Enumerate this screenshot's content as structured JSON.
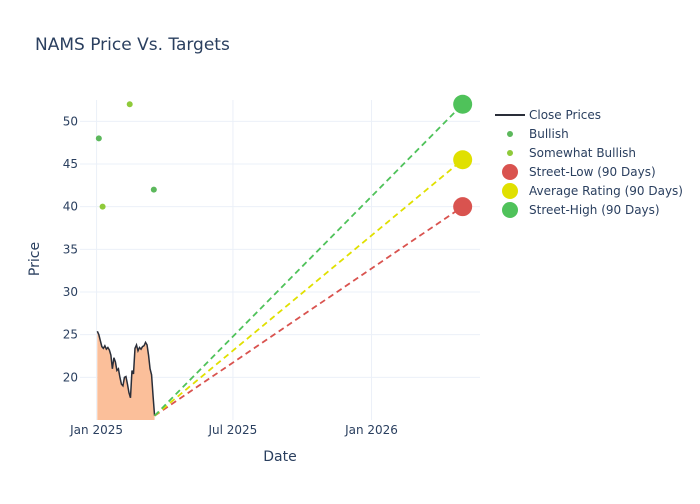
{
  "chart_data": {
    "type": "line",
    "title": "NAMS Price Vs. Targets",
    "xlabel": "Date",
    "ylabel": "Price",
    "x_range": [
      "2024-12-10",
      "2026-05-25"
    ],
    "y_range": [
      15,
      52.5
    ],
    "x_ticks": [
      {
        "date": "2025-01-01",
        "label": "Jan 2025"
      },
      {
        "date": "2025-07-01",
        "label": "Jul 2025"
      },
      {
        "date": "2026-01-01",
        "label": "Jan 2026"
      }
    ],
    "y_ticks": [
      20,
      25,
      30,
      35,
      40,
      45,
      50
    ],
    "grid": true,
    "legend_position": "right",
    "series": [
      {
        "name": "Close Prices",
        "kind": "line",
        "fill": "area",
        "color": "#2a2e39",
        "fill_color": "#fbbf9a",
        "points": [
          [
            "2025-01-02",
            25.4
          ],
          [
            "2025-01-04",
            25.0
          ],
          [
            "2025-01-06",
            24.3
          ],
          [
            "2025-01-08",
            23.6
          ],
          [
            "2025-01-10",
            23.4
          ],
          [
            "2025-01-12",
            23.7
          ],
          [
            "2025-01-14",
            23.3
          ],
          [
            "2025-01-16",
            23.5
          ],
          [
            "2025-01-18",
            23.2
          ],
          [
            "2025-01-20",
            22.6
          ],
          [
            "2025-01-22",
            21.0
          ],
          [
            "2025-01-24",
            22.3
          ],
          [
            "2025-01-26",
            21.8
          ],
          [
            "2025-01-28",
            20.8
          ],
          [
            "2025-01-30",
            21.0
          ],
          [
            "2025-02-01",
            20.0
          ],
          [
            "2025-02-03",
            19.2
          ],
          [
            "2025-02-05",
            19.0
          ],
          [
            "2025-02-07",
            20.0
          ],
          [
            "2025-02-09",
            20.1
          ],
          [
            "2025-02-11",
            19.2
          ],
          [
            "2025-02-13",
            18.2
          ],
          [
            "2025-02-15",
            17.6
          ],
          [
            "2025-02-17",
            20.8
          ],
          [
            "2025-02-19",
            20.4
          ],
          [
            "2025-02-21",
            23.4
          ],
          [
            "2025-02-23",
            23.8
          ],
          [
            "2025-02-25",
            23.1
          ],
          [
            "2025-02-27",
            23.5
          ],
          [
            "2025-03-01",
            23.3
          ],
          [
            "2025-03-03",
            23.6
          ],
          [
            "2025-03-05",
            23.7
          ],
          [
            "2025-03-07",
            24.1
          ],
          [
            "2025-03-09",
            23.8
          ],
          [
            "2025-03-11",
            22.6
          ],
          [
            "2025-03-13",
            21.0
          ],
          [
            "2025-03-15",
            20.3
          ],
          [
            "2025-03-17",
            17.8
          ],
          [
            "2025-03-19",
            15.5
          ]
        ]
      },
      {
        "name": "Bullish",
        "kind": "markers",
        "color": "#5cb85c",
        "points": [
          [
            "2025-01-04",
            48
          ],
          [
            "2025-03-18",
            42
          ]
        ]
      },
      {
        "name": "Somewhat Bullish",
        "kind": "markers",
        "color": "#8fca3a",
        "points": [
          [
            "2025-01-09",
            40
          ],
          [
            "2025-02-14",
            52
          ]
        ]
      },
      {
        "name": "Street-Low (90 Days)",
        "kind": "target",
        "color": "#d9534f",
        "from": [
          "2025-03-19",
          15.5
        ],
        "to": [
          "2026-05-02",
          40
        ]
      },
      {
        "name": "Average Rating (90 Days)",
        "kind": "target",
        "color": "#e0e000",
        "from": [
          "2025-03-19",
          15.5
        ],
        "to": [
          "2026-05-02",
          45.5
        ]
      },
      {
        "name": "Street-High (90 Days)",
        "kind": "target",
        "color": "#4fc25a",
        "from": [
          "2025-03-19",
          15.5
        ],
        "to": [
          "2026-05-02",
          52
        ]
      }
    ]
  }
}
